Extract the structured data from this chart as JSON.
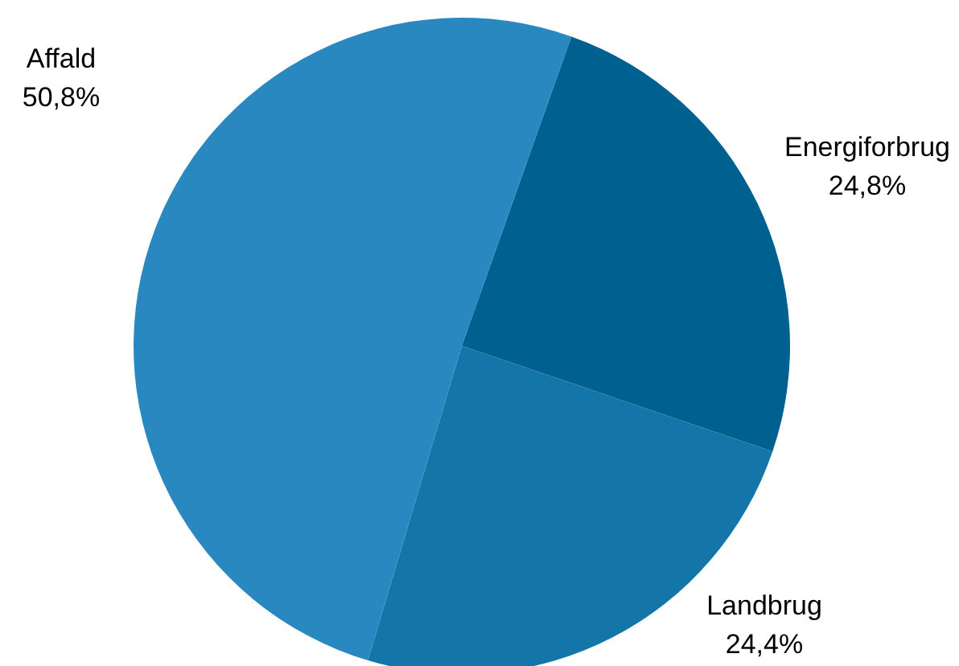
{
  "chart_data": {
    "type": "pie",
    "categories": [
      "Energiforbrug",
      "Landbrug",
      "Affald"
    ],
    "values": [
      24.8,
      24.4,
      50.8
    ],
    "colors": [
      "#00608f",
      "#1475a8",
      "#2888bf"
    ],
    "value_labels": [
      "24,8%",
      "24,4%",
      "50,8%"
    ]
  }
}
